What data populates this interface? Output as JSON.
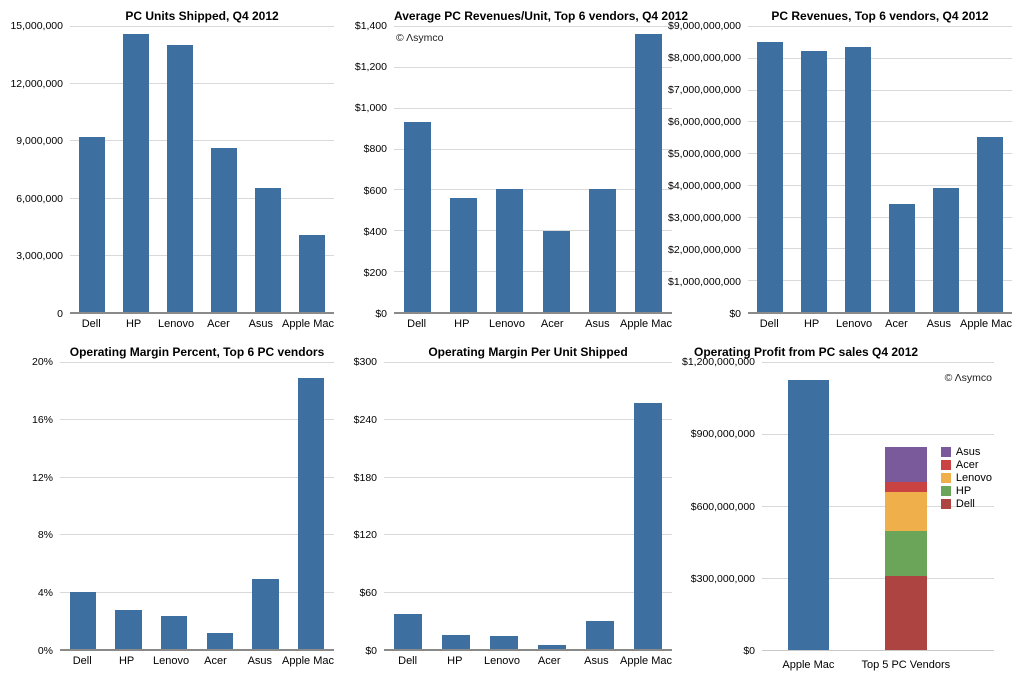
{
  "watermark_text": "© Λsymco",
  "colors": {
    "bar_blue": "#3e6fa1",
    "gridline": "#d9d9d9",
    "axis_line": "#8a8a8a",
    "text": "#000000",
    "vendors": {
      "Dell": "#ae4442",
      "HP": "#6aa55a",
      "Lenovo": "#efaf4a",
      "Acer": "#c84341",
      "Asus": "#7b5a9c"
    }
  },
  "chart_data": [
    {
      "id": "pc-units-shipped",
      "type": "bar",
      "title": "PC Units Shipped, Q4 2012",
      "categories": [
        "Dell",
        "HP",
        "Lenovo",
        "Acer",
        "Asus",
        "Apple Mac"
      ],
      "values": [
        9200000,
        14600000,
        14000000,
        8600000,
        6500000,
        4060000
      ],
      "ylim": [
        0,
        15000000
      ],
      "ystep": 3000000,
      "ytick_labels": [
        "15,000,000",
        "12,000,000",
        "9,000,000",
        "6,000,000",
        "3,000,000",
        "0"
      ],
      "grid": true,
      "legend": null,
      "watermark": null
    },
    {
      "id": "avg-pc-revenues-per-unit",
      "type": "bar",
      "title": "Average PC Revenues/Unit, Top 6 vendors, Q4 2012",
      "categories": [
        "Dell",
        "HP",
        "Lenovo",
        "Acer",
        "Asus",
        "Apple Mac"
      ],
      "values": [
        930,
        560,
        600,
        395,
        600,
        1360
      ],
      "ylim": [
        0,
        1400
      ],
      "ystep": 200,
      "ytick_labels": [
        "$1,400",
        "$1,200",
        "$1,000",
        "$800",
        "$600",
        "$400",
        "$200",
        "$0"
      ],
      "grid": true,
      "legend": null,
      "watermark": "top-left"
    },
    {
      "id": "pc-revenues",
      "type": "bar",
      "title": "PC Revenues, Top 6 vendors, Q4 2012",
      "categories": [
        "Dell",
        "HP",
        "Lenovo",
        "Acer",
        "Asus",
        "Apple Mac"
      ],
      "values": [
        8500000000,
        8200000000,
        8350000000,
        3400000000,
        3900000000,
        5500000000
      ],
      "ylim": [
        0,
        9000000000
      ],
      "ystep": 1000000000,
      "ytick_labels": [
        "$9,000,000,000",
        "$8,000,000,000",
        "$7,000,000,000",
        "$6,000,000,000",
        "$5,000,000,000",
        "$4,000,000,000",
        "$3,000,000,000",
        "$2,000,000,000",
        "$1,000,000,000",
        "$0"
      ],
      "grid": true,
      "legend": null,
      "watermark": null
    },
    {
      "id": "operating-margin-percent",
      "type": "bar",
      "title": "Operating Margin Percent, Top 6 PC vendors",
      "categories": [
        "Dell",
        "HP",
        "Lenovo",
        "Acer",
        "Asus",
        "Apple Mac"
      ],
      "values": [
        4.0,
        2.7,
        2.3,
        1.1,
        4.9,
        18.9
      ],
      "ylim": [
        0,
        20
      ],
      "ystep": 4,
      "ytick_labels": [
        "20%",
        "16%",
        "12%",
        "8%",
        "4%",
        "0%"
      ],
      "grid": true,
      "legend": null,
      "watermark": null
    },
    {
      "id": "operating-margin-per-unit",
      "type": "bar",
      "title": "Operating Margin Per Unit Shipped",
      "categories": [
        "Dell",
        "HP",
        "Lenovo",
        "Acer",
        "Asus",
        "Apple Mac"
      ],
      "values": [
        37,
        15,
        14,
        4,
        29,
        257
      ],
      "ylim": [
        0,
        300
      ],
      "ystep": 60,
      "ytick_labels": [
        "$300",
        "$240",
        "$180",
        "$120",
        "$60",
        "$0"
      ],
      "grid": true,
      "legend": null,
      "watermark": null
    },
    {
      "id": "operating-profit",
      "type": "stacked-bar",
      "title": "Operating Profit from PC sales Q4 2012",
      "categories": [
        "Apple Mac",
        "Top 5 PC Vendors"
      ],
      "bars": [
        {
          "category": "Apple Mac",
          "segments": [
            {
              "name": "Apple Mac",
              "value": 1125000000
            }
          ]
        },
        {
          "category": "Top 5 PC Vendors",
          "segments": [
            {
              "name": "Dell",
              "value": 310000000
            },
            {
              "name": "HP",
              "value": 185000000
            },
            {
              "name": "Lenovo",
              "value": 165000000
            },
            {
              "name": "Acer",
              "value": 40000000
            },
            {
              "name": "Asus",
              "value": 145000000
            }
          ]
        }
      ],
      "ylim": [
        0,
        1200000000
      ],
      "ystep": 300000000,
      "ytick_labels": [
        "$1,200,000,000",
        "$900,000,000",
        "$600,000,000",
        "$300,000,000",
        "$0"
      ],
      "grid": true,
      "legend": [
        "Asus",
        "Acer",
        "Lenovo",
        "HP",
        "Dell"
      ],
      "legend_position": "right-of-stack",
      "watermark": "top-right"
    }
  ]
}
